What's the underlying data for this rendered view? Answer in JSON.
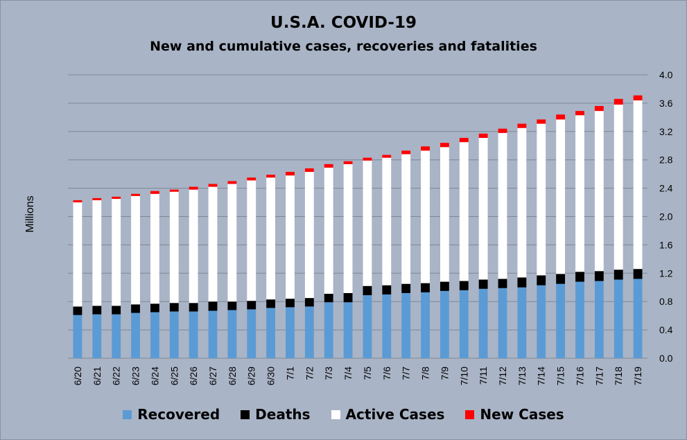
{
  "chart_data": {
    "type": "bar",
    "stacked": true,
    "title": "U.S.A. COVID-19",
    "subtitle": "New and cumulative cases, recoveries and fatalities",
    "ylabel": "Millions",
    "xlabel": "",
    "ylim": [
      0,
      4.0
    ],
    "yticks": [
      "0.0",
      "0.4",
      "0.8",
      "1.2",
      "1.6",
      "2.0",
      "2.4",
      "2.8",
      "3.2",
      "3.6",
      "4.0"
    ],
    "y_axis_side": "right",
    "grid": true,
    "legend_position": "bottom",
    "categories": [
      "6/20",
      "6/21",
      "6/22",
      "6/23",
      "6/24",
      "6/25",
      "6/26",
      "6/27",
      "6/28",
      "6/29",
      "6/30",
      "7/1",
      "7/2",
      "7/3",
      "7/4",
      "7/5",
      "7/6",
      "7/7",
      "7/8",
      "7/9",
      "7/10",
      "7/11",
      "7/12",
      "7/13",
      "7/14",
      "7/15",
      "7/16",
      "7/17",
      "7/18",
      "7/19"
    ],
    "series": [
      {
        "name": "Recovered",
        "color": "#5b9bd5",
        "values": [
          0.61,
          0.62,
          0.62,
          0.64,
          0.65,
          0.66,
          0.66,
          0.67,
          0.68,
          0.69,
          0.71,
          0.72,
          0.73,
          0.79,
          0.79,
          0.89,
          0.9,
          0.92,
          0.93,
          0.95,
          0.96,
          0.98,
          0.99,
          1.0,
          1.03,
          1.05,
          1.08,
          1.09,
          1.11,
          1.12
        ]
      },
      {
        "name": "Deaths",
        "color": "#000000",
        "values": [
          0.12,
          0.12,
          0.12,
          0.12,
          0.12,
          0.12,
          0.12,
          0.13,
          0.12,
          0.12,
          0.12,
          0.12,
          0.12,
          0.12,
          0.13,
          0.13,
          0.13,
          0.13,
          0.13,
          0.13,
          0.13,
          0.13,
          0.13,
          0.14,
          0.14,
          0.14,
          0.14,
          0.14,
          0.14,
          0.14
        ]
      },
      {
        "name": "Active Cases",
        "color": "#ffffff",
        "values": [
          1.47,
          1.49,
          1.51,
          1.53,
          1.55,
          1.57,
          1.6,
          1.62,
          1.66,
          1.7,
          1.72,
          1.74,
          1.78,
          1.78,
          1.82,
          1.77,
          1.8,
          1.83,
          1.87,
          1.9,
          1.96,
          2.0,
          2.06,
          2.11,
          2.14,
          2.18,
          2.21,
          2.26,
          2.33,
          2.38
        ]
      },
      {
        "name": "New Cases",
        "color": "#ff0000",
        "values": [
          0.03,
          0.03,
          0.03,
          0.03,
          0.04,
          0.03,
          0.04,
          0.04,
          0.04,
          0.04,
          0.04,
          0.05,
          0.05,
          0.05,
          0.04,
          0.04,
          0.04,
          0.05,
          0.06,
          0.06,
          0.06,
          0.06,
          0.06,
          0.06,
          0.06,
          0.07,
          0.06,
          0.07,
          0.08,
          0.07
        ]
      }
    ]
  },
  "colors": {
    "background": "#a9b4c6",
    "gridline": "#7f8793"
  }
}
